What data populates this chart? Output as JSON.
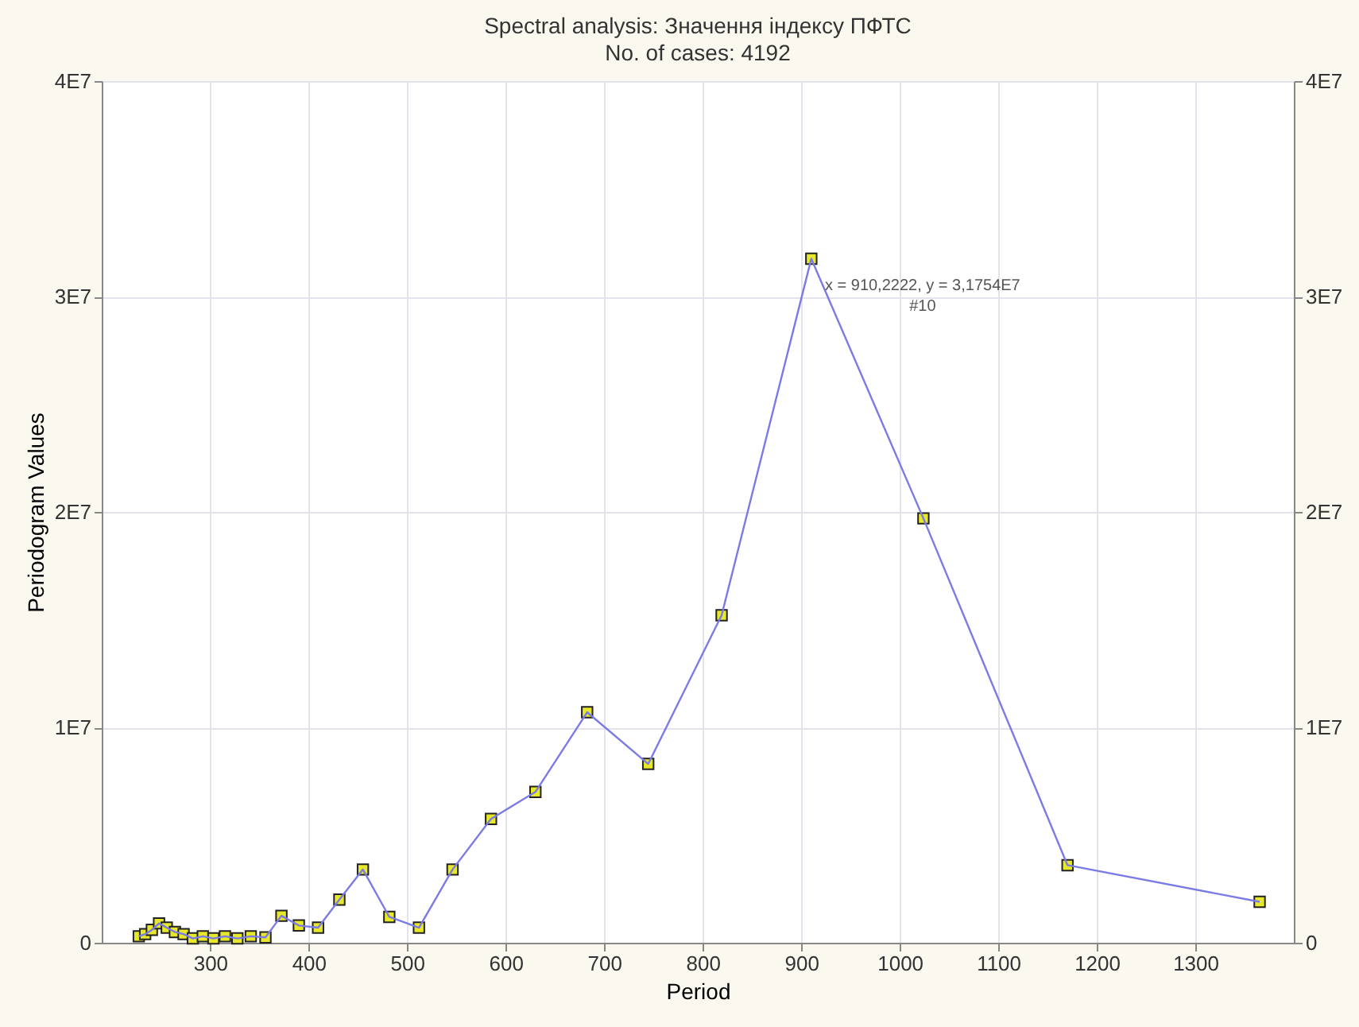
{
  "chart_data": {
    "type": "line",
    "title": "Spectral analysis: Значення індексу ПФТС",
    "subtitle": "No. of cases: 4192",
    "xlabel": "Period",
    "ylabel": "Periodogram Values",
    "x": [
      227.6,
      234.1,
      240.9,
      248.2,
      256,
      264.3,
      273.1,
      282.5,
      292.6,
      303.4,
      315.1,
      327.7,
      341.3,
      356.2,
      372.4,
      390.1,
      409.6,
      431.2,
      455.1,
      481.9,
      512,
      546.1,
      585.1,
      630.2,
      682.7,
      744.7,
      819.2,
      910.2222,
      1024,
      1170.3,
      1365.3
    ],
    "series": [
      {
        "color": "#7b7be6",
        "values": [
          300000,
          400000,
          600000,
          900000,
          700000,
          500000,
          400000,
          200000,
          300000,
          200000,
          300000,
          200000,
          300000,
          250000,
          1250000,
          800000,
          700000,
          2000000,
          3400000,
          1200000,
          700000,
          3400000,
          5750000,
          7000000,
          10700000,
          8300000,
          15200000,
          31754000,
          19700000,
          3600000,
          1900000
        ]
      }
    ],
    "marker": "square",
    "grid": true,
    "xlim": [
      190,
      1400
    ],
    "xticks": [
      300,
      400,
      500,
      600,
      700,
      800,
      900,
      1000,
      1100,
      1200,
      1300
    ],
    "ylim": [
      0,
      40000000
    ],
    "yticks": [
      0,
      {
        "value": 10000000,
        "label": "1E7"
      },
      {
        "value": 20000000,
        "label": "2E7"
      },
      {
        "value": 30000000,
        "label": "3E7"
      },
      {
        "value": 40000000,
        "label": "4E7"
      }
    ],
    "y2lim": [
      0,
      40000000
    ],
    "y2ticks": [
      0,
      {
        "value": 10000000,
        "label": "1E7"
      },
      {
        "value": 20000000,
        "label": "2E7"
      },
      {
        "value": 30000000,
        "label": "3E7"
      },
      {
        "value": 40000000,
        "label": "4E7"
      }
    ],
    "annotations": [
      {
        "text": "x = 910,2222, y = 3,1754E7\n#10",
        "x": 910.2222,
        "y": 31754000
      }
    ]
  }
}
